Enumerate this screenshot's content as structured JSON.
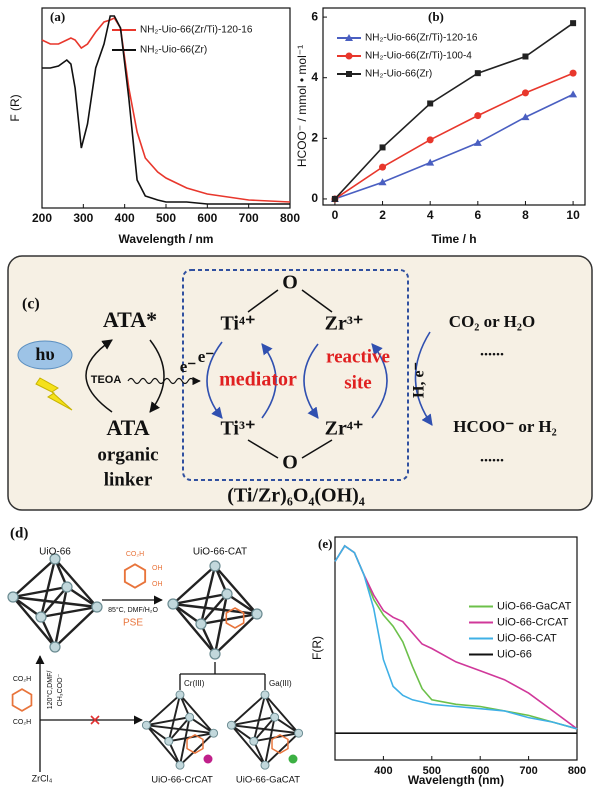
{
  "chart_data": [
    {
      "type": "line",
      "panel_label": "(a)",
      "x_label": "Wavelength / nm",
      "y_label": "F (R)",
      "x": [
        200,
        220,
        240,
        260,
        270,
        280,
        295,
        310,
        330,
        350,
        365,
        375,
        390,
        410,
        430,
        450,
        480,
        500,
        550,
        600,
        700,
        800
      ],
      "xlim": [
        200,
        800
      ],
      "xticks": [
        200,
        300,
        400,
        500,
        600,
        700,
        800
      ],
      "ylim": [
        0,
        1
      ],
      "legend": "upper right",
      "series": [
        {
          "name": "NH₂-Uio-66(Zr/Ti)-120-16",
          "color": "#e8372c",
          "values": [
            0.84,
            0.82,
            0.82,
            0.84,
            0.85,
            0.84,
            0.8,
            0.82,
            0.88,
            0.93,
            0.94,
            0.95,
            0.9,
            0.6,
            0.38,
            0.25,
            0.18,
            0.15,
            0.1,
            0.07,
            0.04,
            0.03
          ]
        },
        {
          "name": "NH₂-Uio-66(Zr)",
          "color": "#111111",
          "values": [
            0.7,
            0.7,
            0.71,
            0.74,
            0.72,
            0.6,
            0.3,
            0.42,
            0.7,
            0.82,
            0.96,
            0.96,
            0.9,
            0.55,
            0.14,
            0.06,
            0.04,
            0.03,
            0.03,
            0.02,
            0.02,
            0.02
          ]
        }
      ]
    },
    {
      "type": "line",
      "panel_label": "(b)",
      "x_label": "Time / h",
      "y_label": "HCOO⁻ / mmol • mol⁻¹",
      "x": [
        0,
        2,
        4,
        6,
        8,
        10
      ],
      "xlim": [
        -0.5,
        10.5
      ],
      "xticks": [
        0,
        2,
        4,
        6,
        8,
        10
      ],
      "ylim": [
        -0.2,
        6.3
      ],
      "yticks": [
        0,
        2,
        4,
        6
      ],
      "legend": "upper left",
      "series": [
        {
          "name": "NH₂-Uio-66(Zr/Ti)-120-16",
          "color": "#4a5fc1",
          "marker": "triangle",
          "values": [
            0,
            0.55,
            1.2,
            1.85,
            2.7,
            3.45
          ]
        },
        {
          "name": "NH₂-Uio-66(Zr/Ti)-100-4",
          "color": "#e8372c",
          "marker": "circle",
          "values": [
            0,
            1.05,
            1.95,
            2.75,
            3.5,
            4.15
          ]
        },
        {
          "name": "NH₂-Uio-66(Zr)",
          "color": "#222222",
          "marker": "square",
          "values": [
            0,
            1.7,
            3.15,
            4.15,
            4.7,
            5.8
          ]
        }
      ]
    },
    {
      "type": "line",
      "panel_label": "(e)",
      "x_label": "Wavelength (nm)",
      "y_label": "F(R)",
      "x": [
        300,
        320,
        340,
        360,
        380,
        400,
        420,
        440,
        460,
        480,
        500,
        550,
        600,
        650,
        700,
        750,
        800
      ],
      "xlim": [
        300,
        800
      ],
      "xticks": [
        400,
        500,
        600,
        700,
        800
      ],
      "ylim": [
        0,
        1
      ],
      "legend": "center right",
      "series": [
        {
          "name": "UiO-66-GaCAT",
          "color": "#6cc04a",
          "values": [
            0.89,
            0.96,
            0.93,
            0.83,
            0.72,
            0.65,
            0.6,
            0.53,
            0.42,
            0.32,
            0.27,
            0.25,
            0.24,
            0.22,
            0.2,
            0.17,
            0.14
          ]
        },
        {
          "name": "UiO-66-CrCAT",
          "color": "#d0389a",
          "values": [
            0.89,
            0.96,
            0.93,
            0.83,
            0.74,
            0.67,
            0.64,
            0.62,
            0.57,
            0.52,
            0.5,
            0.44,
            0.4,
            0.36,
            0.3,
            0.22,
            0.14
          ]
        },
        {
          "name": "UiO-66-CAT",
          "color": "#3fb0e6",
          "values": [
            0.89,
            0.96,
            0.93,
            0.83,
            0.68,
            0.45,
            0.33,
            0.29,
            0.27,
            0.26,
            0.25,
            0.24,
            0.23,
            0.22,
            0.19,
            0.17,
            0.14
          ]
        },
        {
          "name": "UiO-66",
          "color": "#111111",
          "values": [
            0.12,
            0.12,
            0.12,
            0.12,
            0.12,
            0.12,
            0.12,
            0.12,
            0.12,
            0.12,
            0.12,
            0.12,
            0.12,
            0.12,
            0.12,
            0.12,
            0.12
          ]
        }
      ]
    }
  ],
  "diagram_c": {
    "panel_label": "(c)",
    "ata_excited": "ATA*",
    "light": "hυ",
    "teoa": "TEOA",
    "electron_in": "e⁻",
    "ata": "ATA",
    "organic": "organic",
    "linker": "linker",
    "o_top": "O",
    "ti4": "Ti⁴⁺",
    "zr3": "Zr³⁺",
    "electron_mediator": "e⁻",
    "mediator": "mediator",
    "reactive": "reactive",
    "site": "site",
    "ti3": "Ti³⁺",
    "zr4": "Zr⁴⁺",
    "o_bottom": "O",
    "cluster": "(Ti/Zr)₆O₄(OH)₄",
    "reactants": "CO₂ or H₂O",
    "dots_top": "......",
    "electrons": "H, e⁻",
    "products": "HCOO⁻ or H₂",
    "dots_bottom": "......"
  },
  "scheme_d": {
    "panel_label": "(d)",
    "uio66": "UiO-66",
    "uio66_cat": "UiO-66-CAT",
    "gallic_co2h": "CO₂H",
    "gallic_oh1": "OH",
    "gallic_oh2": "OH",
    "pse_conditions": "85°C, DMF/H₂O",
    "pse": "PSE",
    "synthesis_conditions_1": "120°C,DMF/",
    "synthesis_conditions_2": "CH₃COO⁻",
    "tpa_co2h_top": "CO₂H",
    "tpa_co2h_bottom": "CO₂H",
    "zrcl4": "ZrCl₄",
    "cr": "Cr(III)",
    "ga": "Ga(III)",
    "uio66_crcat": "UiO-66-CrCAT",
    "uio66_gacat": "UiO-66-GaCAT"
  }
}
